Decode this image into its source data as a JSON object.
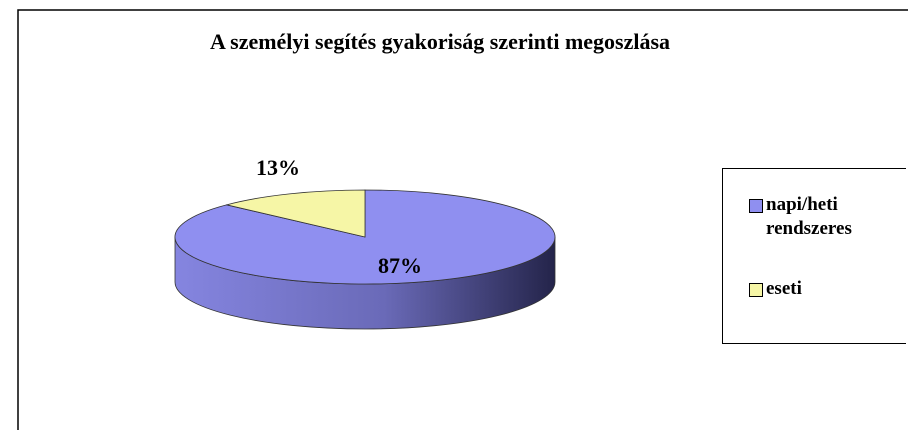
{
  "chart_data": {
    "type": "pie",
    "title": "A személyi segítés gyakoriság szerinti megoszlása",
    "categories": [
      "napi/heti rendszeres",
      "eseti"
    ],
    "values": [
      87,
      13
    ],
    "value_labels": [
      "87%",
      "13%"
    ],
    "colors": [
      "#8f8ff0",
      "#f6f6a6"
    ],
    "legend": "right"
  }
}
